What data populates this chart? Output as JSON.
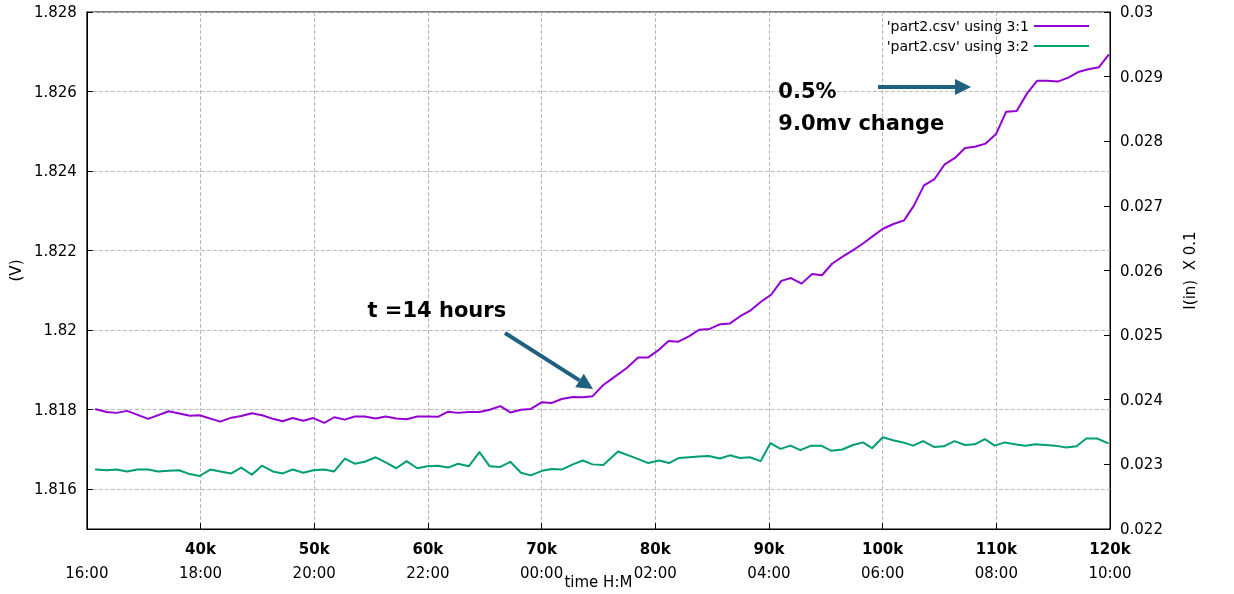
{
  "chart_data": {
    "type": "line",
    "xlabel": "time H:M",
    "ylabel": "(V)",
    "y2label": "I(in)  X 0.1",
    "xlim": [
      30000,
      120000
    ],
    "xticks": [
      {
        "value": 40000,
        "label": "40k"
      },
      {
        "value": 50000,
        "label": "50k"
      },
      {
        "value": 60000,
        "label": "60k"
      },
      {
        "value": 70000,
        "label": "70k"
      },
      {
        "value": 80000,
        "label": "80k"
      },
      {
        "value": 90000,
        "label": "90k"
      },
      {
        "value": 100000,
        "label": "100k"
      },
      {
        "value": 110000,
        "label": "110k"
      },
      {
        "value": 120000,
        "label": "120k"
      }
    ],
    "x2lim": [
      "2000-01-01T16:00",
      "2000-01-02T10:00"
    ],
    "x2ticks": [
      {
        "value": "2000-01-01T16:00",
        "label": "16:00"
      },
      {
        "value": "2000-01-01T18:00",
        "label": "18:00"
      },
      {
        "value": "2000-01-01T20:00",
        "label": "20:00"
      },
      {
        "value": "2000-01-01T22:00",
        "label": "22:00"
      },
      {
        "value": "2000-01-02T00:00",
        "label": "00:00"
      },
      {
        "value": "2000-01-02T02:00",
        "label": "02:00"
      },
      {
        "value": "2000-01-02T04:00",
        "label": "04:00"
      },
      {
        "value": "2000-01-02T06:00",
        "label": "06:00"
      },
      {
        "value": "2000-01-02T08:00",
        "label": "08:00"
      },
      {
        "value": "2000-01-02T10:00",
        "label": "10:00"
      }
    ],
    "ylim": [
      1.815,
      1.828
    ],
    "yticks": [
      1.816,
      1.818,
      1.82,
      1.822,
      1.824,
      1.826,
      1.828
    ],
    "y2lim": [
      0.022,
      0.03
    ],
    "y2ticks": [
      0.022,
      0.023,
      0.024,
      0.025,
      0.026,
      0.027,
      0.028,
      0.029,
      0.03
    ],
    "grid": true,
    "legend": "top right",
    "marker": "none",
    "line_style": "solid",
    "annotations": [
      "t =14 hours",
      "0.5%\n9.0mv change"
    ],
    "series": [
      {
        "name": "'part2.csv' using 3:1",
        "color": "#9400d3",
        "x": [
          30800,
          31741,
          32611,
          33551,
          35396,
          37206,
          39051,
          39921,
          41731,
          42706,
          43577,
          44517,
          45422,
          46362,
          47232,
          48102,
          49042,
          49913,
          50887,
          51758,
          52698,
          53568,
          54438,
          55413,
          56283,
          57223,
          58128,
          59068,
          59938,
          60878,
          61783,
          62653,
          63594,
          64533,
          65438,
          66378,
          67249,
          68189,
          69059,
          70034,
          70904,
          71774,
          72749,
          73619,
          74489,
          75430,
          76300,
          77493,
          78493,
          79354,
          80250,
          81173,
          82035,
          83000,
          83862,
          84785,
          85716,
          86577,
          87473,
          88397,
          89327,
          90189,
          91085,
          91939,
          92869,
          93801,
          94663,
          95551,
          96482,
          97344,
          98275,
          99171,
          100025,
          100955,
          101887,
          102749,
          103637,
          104568,
          105430,
          106361,
          107249,
          108111,
          109042,
          109973,
          110861,
          111791,
          112722,
          113584,
          114471,
          115403,
          116334,
          117196,
          118084,
          119015,
          119876
        ],
        "values": [
          1.81801,
          1.81794,
          1.81792,
          1.81797,
          1.81777,
          1.81796,
          1.81785,
          1.81786,
          1.8177,
          1.8178,
          1.81784,
          1.81791,
          1.81786,
          1.81777,
          1.81771,
          1.81779,
          1.81772,
          1.81779,
          1.81767,
          1.81781,
          1.81775,
          1.81783,
          1.81783,
          1.81778,
          1.81783,
          1.81778,
          1.81776,
          1.81783,
          1.81783,
          1.81782,
          1.81795,
          1.81792,
          1.81794,
          1.81794,
          1.818,
          1.81809,
          1.81793,
          1.818,
          1.81802,
          1.81819,
          1.81817,
          1.81827,
          1.81832,
          1.81831,
          1.81834,
          1.81862,
          1.8188,
          1.81905,
          1.81931,
          1.81931,
          1.81949,
          1.81973,
          1.81971,
          1.81985,
          1.82001,
          1.82003,
          1.82015,
          1.82017,
          1.82035,
          1.8205,
          1.82072,
          1.82089,
          1.82124,
          1.82131,
          1.82117,
          1.82141,
          1.82138,
          1.82167,
          1.82185,
          1.822,
          1.82218,
          1.82237,
          1.82255,
          1.82267,
          1.82276,
          1.82313,
          1.82364,
          1.8238,
          1.82416,
          1.82433,
          1.82458,
          1.82461,
          1.82469,
          1.82493,
          1.82549,
          1.82551,
          1.82596,
          1.82627,
          1.82627,
          1.82625,
          1.82635,
          1.82649,
          1.82656,
          1.82661,
          1.82692
        ]
      },
      {
        "name": "'part2.csv' using 3:2",
        "color": "#009e73",
        "axis": "y2",
        "x": [
          30800,
          31741,
          32611,
          33551,
          34456,
          35396,
          36266,
          37206,
          38111,
          39051,
          39921,
          40861,
          41731,
          42706,
          43577,
          44517,
          45387,
          46362,
          47232,
          48102,
          49042,
          49913,
          50887,
          51758,
          52698,
          53568,
          54438,
          55413,
          56283,
          57223,
          58128,
          59068,
          59938,
          60878,
          61783,
          62653,
          63594,
          64533,
          65438,
          66378,
          67249,
          68189,
          69059,
          70034,
          70904,
          71774,
          72749,
          73619,
          74489,
          75430,
          76725,
          78231,
          79389,
          80329,
          81208,
          82087,
          83837,
          84715,
          85690,
          86569,
          87439,
          88318,
          89267,
          90137,
          91016,
          91895,
          92765,
          93714,
          94593,
          95498,
          96447,
          97395,
          98266,
          99075,
          100015,
          100999,
          101808,
          102679,
          103557,
          104506,
          105377,
          106325,
          107239,
          108110,
          108989,
          109859,
          110738,
          111617,
          112557,
          113436,
          114315,
          115185,
          116134,
          117048,
          117918,
          118866,
          119806
        ],
        "values": [
          0.02292,
          0.02291,
          0.02292,
          0.02289,
          0.02292,
          0.02292,
          0.02289,
          0.0229,
          0.02291,
          0.02285,
          0.02282,
          0.02292,
          0.02289,
          0.02286,
          0.02295,
          0.02284,
          0.02298,
          0.02289,
          0.02286,
          0.02292,
          0.02287,
          0.02291,
          0.02292,
          0.02289,
          0.02309,
          0.02301,
          0.02304,
          0.02311,
          0.02303,
          0.02294,
          0.02305,
          0.02294,
          0.02297,
          0.02298,
          0.02295,
          0.02301,
          0.02297,
          0.02319,
          0.02297,
          0.02296,
          0.02304,
          0.02287,
          0.02283,
          0.0229,
          0.02293,
          0.02292,
          0.023,
          0.02306,
          0.023,
          0.02299,
          0.0232,
          0.0231,
          0.02302,
          0.02306,
          0.02302,
          0.0231,
          0.02312,
          0.02313,
          0.02309,
          0.02314,
          0.0231,
          0.02311,
          0.02305,
          0.02333,
          0.02324,
          0.02329,
          0.02322,
          0.02329,
          0.02329,
          0.02321,
          0.02323,
          0.0233,
          0.02334,
          0.02325,
          0.02342,
          0.02337,
          0.02334,
          0.02329,
          0.02336,
          0.02327,
          0.02328,
          0.02336,
          0.0233,
          0.02331,
          0.02339,
          0.02329,
          0.02334,
          0.02331,
          0.02329,
          0.02331,
          0.0233,
          0.02329,
          0.02326,
          0.02328,
          0.0234,
          0.0234,
          0.02333
        ]
      }
    ]
  }
}
